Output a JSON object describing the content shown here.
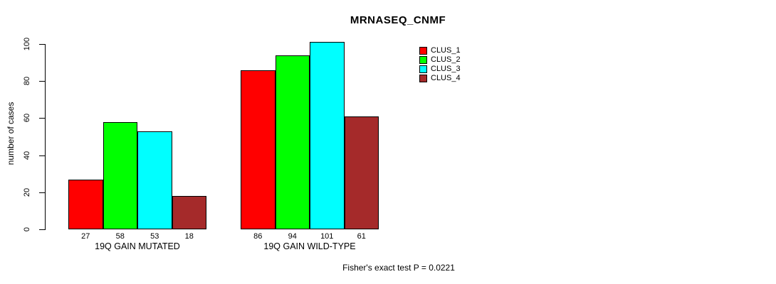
{
  "title": "MRNASEQ_CNMF",
  "footer": "Fisher's exact test P = 0.0221",
  "colors": {
    "clus_1": "#FF0000",
    "clus_2": "#00FF00",
    "clus_3": "#00FFFF",
    "clus_4": "#A52A2A",
    "axis": "#000000",
    "background": "#FFFFFF"
  },
  "chart_data": {
    "type": "bar",
    "title": "MRNASEQ_CNMF",
    "categories": [
      "19Q GAIN MUTATED",
      "19Q GAIN WILD-TYPE"
    ],
    "series": [
      {
        "name": "CLUS_1",
        "color": "#FF0000",
        "values": [
          27,
          86
        ]
      },
      {
        "name": "CLUS_2",
        "color": "#00FF00",
        "values": [
          58,
          94
        ]
      },
      {
        "name": "CLUS_3",
        "color": "#00FFFF",
        "values": [
          53,
          101
        ]
      },
      {
        "name": "CLUS_4",
        "color": "#A52A2A",
        "values": [
          18,
          61
        ]
      }
    ],
    "bar_value_labels": [
      [
        "27",
        "58",
        "53",
        "18"
      ],
      [
        "86",
        "94",
        "101",
        "61"
      ]
    ],
    "xlabel": "",
    "ylabel": "number of cases",
    "yticks": [
      0,
      20,
      40,
      60,
      80,
      100
    ],
    "ylim": [
      0,
      100
    ],
    "grid": false,
    "legend_position": "top-right",
    "annotation": "Fisher's exact test P = 0.0221"
  }
}
